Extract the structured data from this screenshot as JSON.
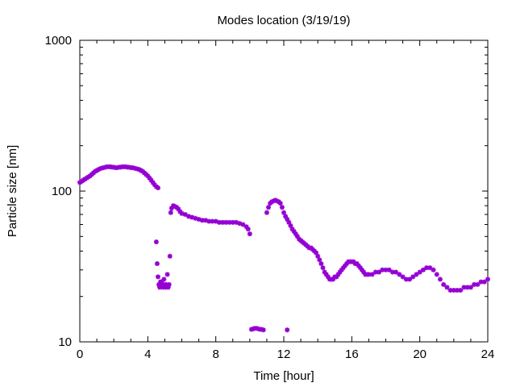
{
  "chart_data": {
    "type": "scatter",
    "title": "Modes location (3/19/19)",
    "xlabel": "Time [hour]",
    "ylabel": "Particle size [nm]",
    "xlim": [
      0,
      24
    ],
    "ylim": [
      10,
      1000
    ],
    "yscale": "log",
    "xticks": [
      "0",
      "4",
      "8",
      "12",
      "16",
      "20",
      "24"
    ],
    "yticks": [
      "10",
      "100",
      "1000"
    ],
    "grid": false,
    "marker_color": "#9400D3",
    "series": [
      {
        "points": [
          [
            0.0,
            114
          ],
          [
            0.1,
            116
          ],
          [
            0.2,
            118
          ],
          [
            0.3,
            120
          ],
          [
            0.4,
            122
          ],
          [
            0.5,
            124
          ],
          [
            0.6,
            126
          ],
          [
            0.7,
            129
          ],
          [
            0.8,
            132
          ],
          [
            0.9,
            135
          ],
          [
            1.0,
            137
          ],
          [
            1.1,
            139
          ],
          [
            1.2,
            141
          ],
          [
            1.3,
            142
          ],
          [
            1.4,
            143
          ],
          [
            1.5,
            144
          ],
          [
            1.6,
            145
          ],
          [
            1.7,
            145
          ],
          [
            1.8,
            145
          ],
          [
            1.9,
            144
          ],
          [
            2.0,
            144
          ],
          [
            2.1,
            143
          ],
          [
            2.2,
            143
          ],
          [
            2.3,
            144
          ],
          [
            2.4,
            144
          ],
          [
            2.5,
            145
          ],
          [
            2.6,
            145
          ],
          [
            2.7,
            145
          ],
          [
            2.8,
            144
          ],
          [
            2.9,
            144
          ],
          [
            3.0,
            143
          ],
          [
            3.1,
            143
          ],
          [
            3.2,
            142
          ],
          [
            3.3,
            141
          ],
          [
            3.4,
            140
          ],
          [
            3.5,
            139
          ],
          [
            3.6,
            137
          ],
          [
            3.7,
            135
          ],
          [
            3.8,
            132
          ],
          [
            3.9,
            129
          ],
          [
            4.0,
            126
          ],
          [
            4.1,
            122
          ],
          [
            4.2,
            118
          ],
          [
            4.3,
            114
          ],
          [
            4.4,
            110
          ],
          [
            4.5,
            107
          ],
          [
            4.6,
            105
          ],
          [
            4.5,
            46
          ],
          [
            4.55,
            33
          ],
          [
            4.6,
            27
          ],
          [
            4.65,
            24
          ],
          [
            4.7,
            23
          ],
          [
            4.75,
            25
          ],
          [
            4.8,
            25
          ],
          [
            4.85,
            24
          ],
          [
            4.9,
            23
          ],
          [
            4.95,
            26
          ],
          [
            5.0,
            24
          ],
          [
            5.05,
            23
          ],
          [
            5.1,
            24
          ],
          [
            5.15,
            28
          ],
          [
            5.2,
            23
          ],
          [
            5.25,
            24
          ],
          [
            5.3,
            37
          ],
          [
            5.35,
            72
          ],
          [
            5.4,
            77
          ],
          [
            5.5,
            80
          ],
          [
            5.6,
            79
          ],
          [
            5.7,
            78
          ],
          [
            5.8,
            76
          ],
          [
            5.9,
            73
          ],
          [
            6.0,
            71
          ],
          [
            6.2,
            70
          ],
          [
            6.4,
            68
          ],
          [
            6.6,
            67
          ],
          [
            6.8,
            66
          ],
          [
            7.0,
            65
          ],
          [
            7.2,
            64
          ],
          [
            7.4,
            64
          ],
          [
            7.6,
            63
          ],
          [
            7.8,
            63
          ],
          [
            8.0,
            63
          ],
          [
            8.2,
            62
          ],
          [
            8.4,
            62
          ],
          [
            8.6,
            62
          ],
          [
            8.8,
            62
          ],
          [
            9.0,
            62
          ],
          [
            9.2,
            62
          ],
          [
            9.4,
            61
          ],
          [
            9.6,
            60
          ],
          [
            9.8,
            58
          ],
          [
            9.9,
            56
          ],
          [
            10.0,
            52
          ],
          [
            10.1,
            12.1
          ],
          [
            10.2,
            12.2
          ],
          [
            10.3,
            12.3
          ],
          [
            10.4,
            12.3
          ],
          [
            10.5,
            12.2
          ],
          [
            10.6,
            12.1
          ],
          [
            10.7,
            12.1
          ],
          [
            10.8,
            12.0
          ],
          [
            11.0,
            72
          ],
          [
            11.1,
            78
          ],
          [
            11.2,
            83
          ],
          [
            11.3,
            85
          ],
          [
            11.4,
            86
          ],
          [
            11.5,
            87
          ],
          [
            11.6,
            86
          ],
          [
            11.7,
            85
          ],
          [
            11.8,
            83
          ],
          [
            11.9,
            78
          ],
          [
            12.0,
            72
          ],
          [
            12.1,
            68
          ],
          [
            12.2,
            65
          ],
          [
            12.3,
            62
          ],
          [
            12.4,
            59
          ],
          [
            12.5,
            56
          ],
          [
            12.6,
            54
          ],
          [
            12.7,
            52
          ],
          [
            12.8,
            50
          ],
          [
            12.9,
            48
          ],
          [
            13.0,
            47
          ],
          [
            13.1,
            46
          ],
          [
            13.2,
            45
          ],
          [
            13.3,
            44
          ],
          [
            13.4,
            43
          ],
          [
            13.5,
            42
          ],
          [
            13.6,
            42
          ],
          [
            13.7,
            41
          ],
          [
            13.8,
            40
          ],
          [
            13.9,
            39
          ],
          [
            14.0,
            37
          ],
          [
            14.1,
            35
          ],
          [
            14.2,
            33
          ],
          [
            14.3,
            31
          ],
          [
            14.4,
            29
          ],
          [
            14.5,
            28
          ],
          [
            14.6,
            27
          ],
          [
            14.7,
            26
          ],
          [
            14.8,
            26
          ],
          [
            14.9,
            26
          ],
          [
            15.0,
            27
          ],
          [
            15.1,
            27
          ],
          [
            15.2,
            28
          ],
          [
            15.3,
            29
          ],
          [
            15.4,
            30
          ],
          [
            15.5,
            31
          ],
          [
            15.6,
            32
          ],
          [
            15.7,
            33
          ],
          [
            15.8,
            34
          ],
          [
            15.9,
            34
          ],
          [
            16.0,
            34
          ],
          [
            16.1,
            34
          ],
          [
            16.2,
            33
          ],
          [
            16.3,
            33
          ],
          [
            16.4,
            32
          ],
          [
            16.5,
            31
          ],
          [
            16.6,
            30
          ],
          [
            16.7,
            29
          ],
          [
            16.8,
            28
          ],
          [
            16.9,
            28
          ],
          [
            17.0,
            28
          ],
          [
            17.2,
            28
          ],
          [
            17.4,
            29
          ],
          [
            17.6,
            29
          ],
          [
            17.8,
            30
          ],
          [
            18.0,
            30
          ],
          [
            18.2,
            30
          ],
          [
            18.4,
            29
          ],
          [
            18.6,
            29
          ],
          [
            18.8,
            28
          ],
          [
            19.0,
            27
          ],
          [
            19.2,
            26
          ],
          [
            19.4,
            26
          ],
          [
            19.6,
            27
          ],
          [
            19.8,
            28
          ],
          [
            20.0,
            29
          ],
          [
            20.2,
            30
          ],
          [
            20.4,
            31
          ],
          [
            20.6,
            31
          ],
          [
            20.8,
            30
          ],
          [
            21.0,
            28
          ],
          [
            21.2,
            26
          ],
          [
            21.4,
            24
          ],
          [
            21.6,
            23
          ],
          [
            21.8,
            22
          ],
          [
            22.0,
            22
          ],
          [
            22.2,
            22
          ],
          [
            22.4,
            22
          ],
          [
            22.6,
            23
          ],
          [
            22.8,
            23
          ],
          [
            23.0,
            23
          ],
          [
            23.2,
            24
          ],
          [
            23.4,
            24
          ],
          [
            23.6,
            25
          ],
          [
            23.8,
            25
          ],
          [
            24.0,
            26
          ],
          [
            12.2,
            12.0
          ]
        ]
      }
    ]
  }
}
